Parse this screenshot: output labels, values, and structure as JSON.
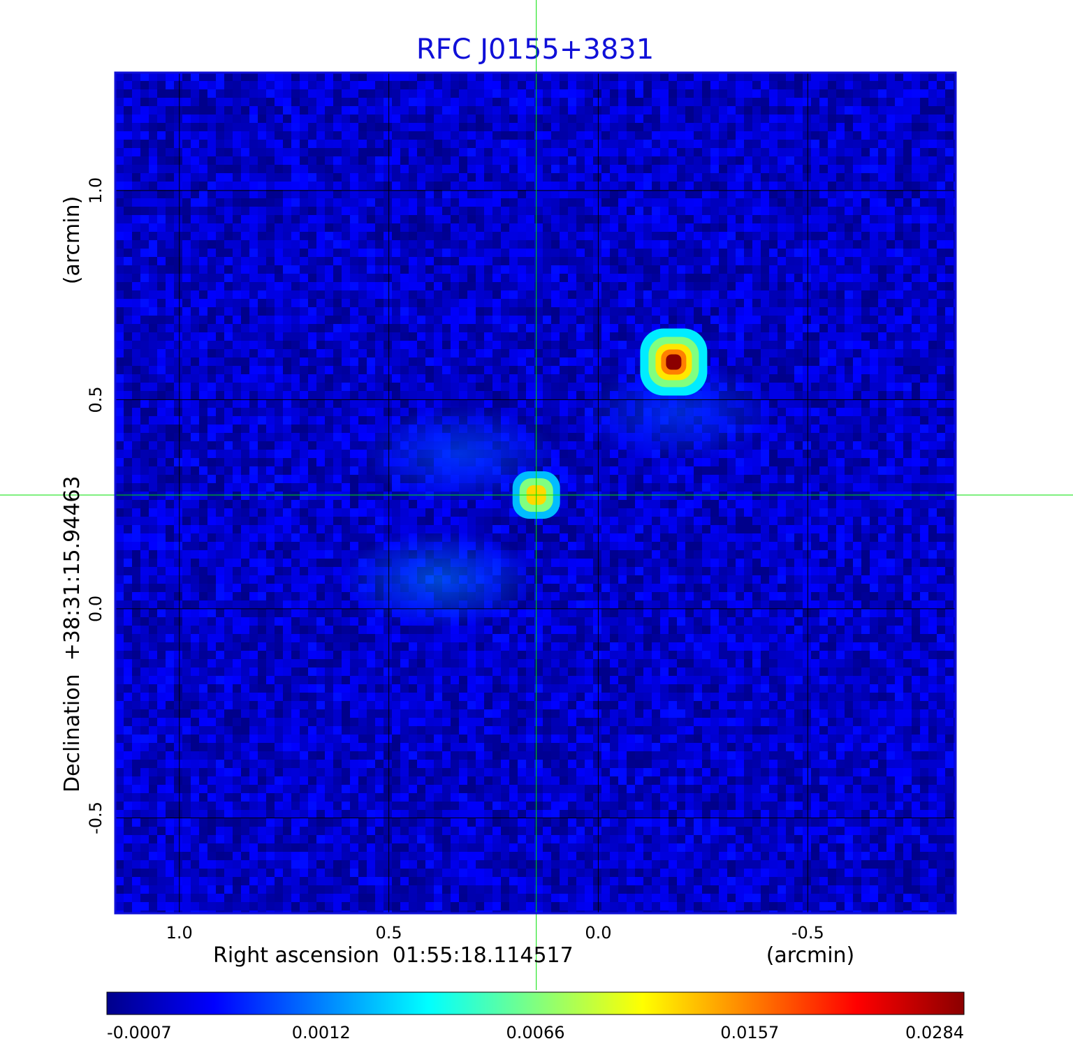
{
  "chart_data": {
    "type": "heatmap",
    "title": "RFC J0155+3831",
    "xlabel": "Right ascension  01:55:18.114517",
    "xunit": "(arcmin)",
    "ylabel": "Declination  +38:31:15.94463",
    "yunit": "(arcmin)",
    "xlim": [
      1.153,
      -0.853
    ],
    "ylim": [
      -0.728,
      1.282
    ],
    "x_ticks": [
      1.0,
      0.5,
      0.0,
      -0.5
    ],
    "y_ticks": [
      -0.5,
      0.0,
      0.5,
      1.0
    ],
    "x_tick_labels": [
      "1.0",
      "0.5",
      "0.0",
      "-0.5"
    ],
    "y_tick_labels": [
      "-0.5",
      "0.0",
      "0.5",
      "1.0"
    ],
    "grid": true,
    "crosshair": {
      "x": 0.148,
      "y": 0.272
    },
    "sources": [
      {
        "x": -0.18,
        "y": 0.59,
        "peak": 0.0284
      },
      {
        "x": 0.148,
        "y": 0.272,
        "peak": 0.0128
      }
    ],
    "background_level": -0.0002,
    "diffuse_features": [
      {
        "x": 0.38,
        "y": 0.07,
        "level": 0.0012
      },
      {
        "x": 0.33,
        "y": 0.37,
        "level": 0.0009
      },
      {
        "x": -0.19,
        "y": 0.47,
        "level": 0.0008
      }
    ],
    "colorbar": {
      "tick_labels": [
        "-0.0007",
        "0.0012",
        "0.0066",
        "0.0157",
        "0.0284"
      ],
      "colormap": [
        "#00008b",
        "#0000ff",
        "#0080ff",
        "#00ffff",
        "#80ff80",
        "#ffff00",
        "#ff8000",
        "#ff0000",
        "#8b0000"
      ]
    },
    "colors": {
      "title": "#1010d8",
      "crosshair": "#00e000",
      "frame": "#1010d8",
      "grid": "#000000"
    }
  }
}
